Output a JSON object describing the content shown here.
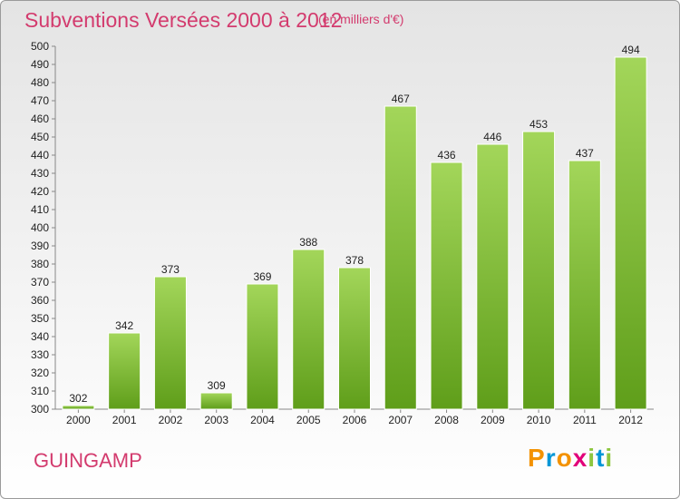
{
  "title": "Subventions Versées 2000 à 2012",
  "subtitle": "(en milliers d'€)",
  "commune": "GUINGAMP",
  "brand": {
    "letters": [
      "P",
      "r",
      "o",
      "x",
      "i",
      "t",
      "i"
    ],
    "colors": [
      "#f39200",
      "#0096d6",
      "#f39200",
      "#e2007a",
      "#8dc63f",
      "#0096d6",
      "#8dc63f"
    ]
  },
  "colors": {
    "title": "#d33b6e",
    "bar_light": "#a3d65a",
    "bar_dark": "#5f9e1a"
  },
  "chart_data": {
    "type": "bar",
    "categories": [
      "2000",
      "2001",
      "2002",
      "2003",
      "2004",
      "2005",
      "2006",
      "2007",
      "2008",
      "2009",
      "2010",
      "2011",
      "2012"
    ],
    "values": [
      302,
      342,
      373,
      309,
      369,
      388,
      378,
      467,
      436,
      446,
      453,
      437,
      494
    ],
    "ylim": [
      300,
      500
    ],
    "yticks": [
      300,
      310,
      320,
      330,
      340,
      350,
      360,
      370,
      380,
      390,
      400,
      410,
      420,
      430,
      440,
      450,
      460,
      470,
      480,
      490,
      500
    ],
    "grid": false,
    "legend": "none"
  }
}
